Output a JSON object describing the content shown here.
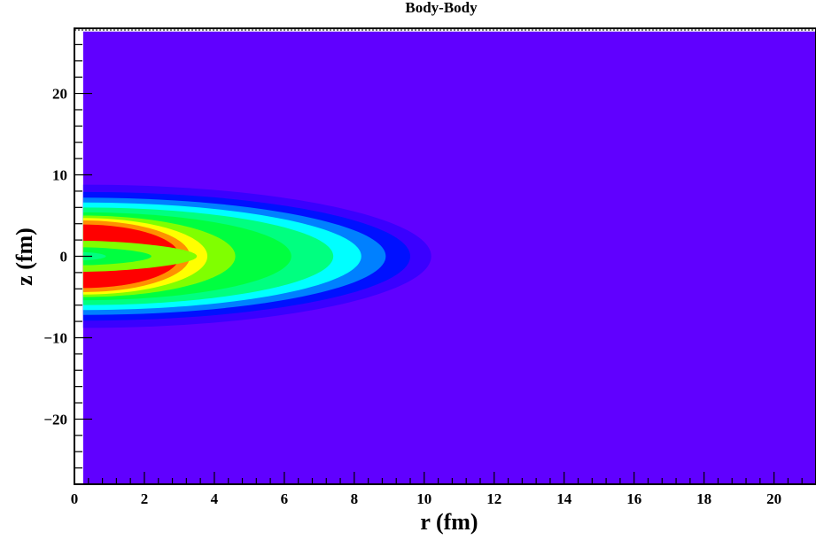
{
  "chart_data": {
    "type": "heatmap",
    "title": "Body-Body",
    "xlabel": "r (fm)",
    "ylabel": "z (fm)",
    "xlim": [
      0,
      21.2
    ],
    "ylim": [
      -28.0,
      28.0
    ],
    "x_ticks": [
      0,
      2,
      4,
      6,
      8,
      10,
      12,
      14,
      16,
      18,
      20
    ],
    "y_ticks": [
      -20,
      -10,
      0,
      10,
      20
    ],
    "x_tick_labels": [
      "0",
      "2",
      "4",
      "6",
      "8",
      "10",
      "12",
      "14",
      "16",
      "18",
      "20"
    ],
    "y_tick_labels": [
      "−20",
      "−10",
      "0",
      "10",
      "20"
    ],
    "grid": false,
    "background_color": "#6000ff",
    "contour_bands": [
      {
        "level": 1,
        "color": "#3a00ff",
        "r_extent": 10.2,
        "z_half_width": 8.8
      },
      {
        "level": 2,
        "color": "#0010ff",
        "r_extent": 9.6,
        "z_half_width": 7.9
      },
      {
        "level": 3,
        "color": "#0080ff",
        "r_extent": 8.9,
        "z_half_width": 7.2
      },
      {
        "level": 4,
        "color": "#00ffff",
        "r_extent": 8.2,
        "z_half_width": 6.6
      },
      {
        "level": 5,
        "color": "#00ff80",
        "r_extent": 7.4,
        "z_half_width": 6.0
      },
      {
        "level": 6,
        "color": "#00ff40",
        "r_extent": 6.2,
        "z_half_width": 5.4
      },
      {
        "level": 7,
        "color": "#80ff00",
        "r_extent": 4.6,
        "z_half_width": 5.0
      },
      {
        "level": 8,
        "color": "#ffff00",
        "r_extent": 3.8,
        "z_half_width": 4.7
      },
      {
        "level": 9,
        "color": "#ff9000",
        "r_extent": 3.3,
        "z_half_width": 4.4
      },
      {
        "level": 10,
        "color": "#ff0000",
        "r_extent": 3.0,
        "z_half_width": 3.9
      }
    ],
    "central_valley": [
      {
        "color": "#80ff00",
        "r_extent": 3.5,
        "z_half_width": 1.9
      },
      {
        "color": "#00ff40",
        "r_extent": 2.2,
        "z_half_width": 1.1
      },
      {
        "color": "#00ff80",
        "r_extent": 0.9,
        "z_half_width": 0.5
      }
    ]
  }
}
